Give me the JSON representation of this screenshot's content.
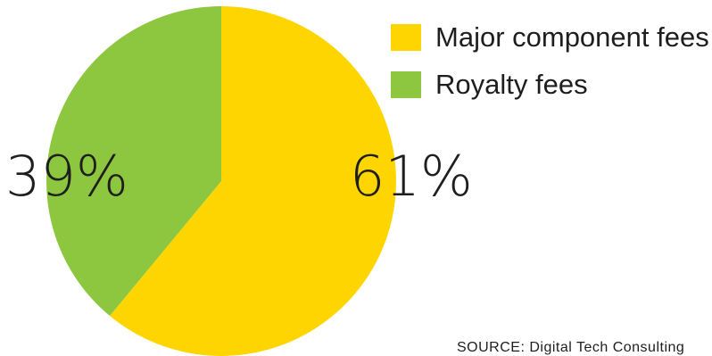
{
  "chart_data": {
    "type": "pie",
    "title": "",
    "slices": [
      {
        "label": "Major component fees",
        "value": 61,
        "display": "61%",
        "color": "#ffd500"
      },
      {
        "label": "Royalty fees",
        "value": 39,
        "display": "39%",
        "color": "#8dc63f"
      }
    ],
    "legend_placement": "top-right",
    "source": "SOURCE: Digital Tech Consulting"
  }
}
